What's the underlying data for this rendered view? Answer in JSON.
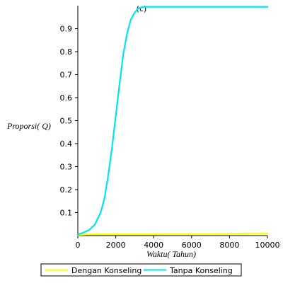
{
  "chart_data": {
    "type": "line",
    "title": "(c)",
    "xlabel": "Waktu( Tahun)",
    "ylabel": "Proporsi( Q)",
    "xlim": [
      0,
      10000
    ],
    "ylim": [
      0,
      1.0
    ],
    "x_ticks": [
      0,
      2000,
      4000,
      6000,
      8000,
      10000
    ],
    "x_tick_labels": [
      "0",
      "2000",
      "4000",
      "6000",
      "8000",
      "10000"
    ],
    "y_ticks": [
      0.1,
      0.2,
      0.3,
      0.4,
      0.5,
      0.6,
      0.7,
      0.8,
      0.9
    ],
    "y_tick_labels": [
      "0.1",
      "0.2",
      "0.3",
      "0.4",
      "0.5",
      "0.6",
      "0.7",
      "0.8",
      "0.9"
    ],
    "grid": false,
    "legend_position": "bottom",
    "series": [
      {
        "name": "Dengan Konseling",
        "color": "#ffff00",
        "x": [
          0,
          500,
          1000,
          2000,
          3000,
          4000,
          5000,
          6000,
          7000,
          8000,
          8500,
          9000,
          10000
        ],
        "y": [
          0.003,
          0.005,
          0.006,
          0.006,
          0.006,
          0.006,
          0.007,
          0.007,
          0.007,
          0.008,
          0.009,
          0.01,
          0.01
        ]
      },
      {
        "name": "Tanpa Konseling",
        "color": "#00e5ee",
        "x": [
          0,
          300,
          600,
          900,
          1200,
          1400,
          1600,
          1800,
          2000,
          2200,
          2400,
          2600,
          2800,
          3000,
          3200,
          3500,
          4000,
          5000,
          6000,
          7000,
          8000,
          9000,
          10000
        ],
        "y": [
          0.005,
          0.013,
          0.025,
          0.048,
          0.1,
          0.16,
          0.26,
          0.38,
          0.52,
          0.66,
          0.79,
          0.88,
          0.94,
          0.97,
          0.99,
          0.995,
          0.995,
          0.995,
          0.995,
          0.995,
          0.995,
          0.995,
          0.995
        ]
      }
    ]
  }
}
